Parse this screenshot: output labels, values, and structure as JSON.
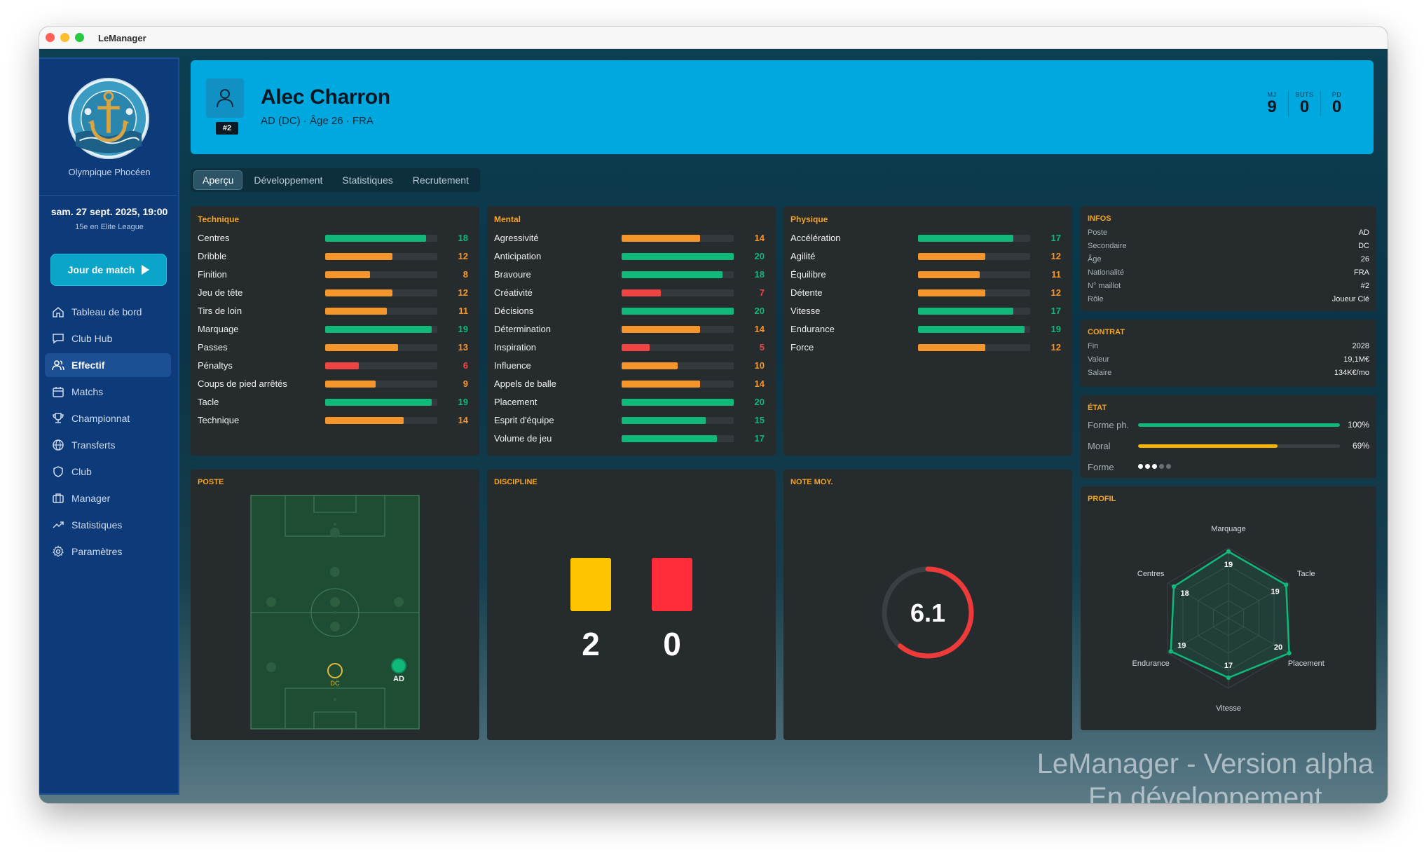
{
  "window": {
    "title": "LeManager"
  },
  "sidebar": {
    "club_name": "Olympique Phocéen",
    "date": "sam. 27 sept. 2025, 19:00",
    "rank": "15e en Elite League",
    "match_button": "Jour de match",
    "nav": [
      {
        "label": "Tableau de bord",
        "icon": "home-icon"
      },
      {
        "label": "Club Hub",
        "icon": "chat-icon"
      },
      {
        "label": "Effectif",
        "icon": "users-icon",
        "active": true
      },
      {
        "label": "Matchs",
        "icon": "calendar-icon"
      },
      {
        "label": "Championnat",
        "icon": "trophy-icon"
      },
      {
        "label": "Transferts",
        "icon": "globe-icon"
      },
      {
        "label": "Club",
        "icon": "shield-icon"
      },
      {
        "label": "Manager",
        "icon": "briefcase-icon"
      },
      {
        "label": "Statistiques",
        "icon": "trend-icon"
      },
      {
        "label": "Paramètres",
        "icon": "gear-icon"
      }
    ]
  },
  "player": {
    "number": "#2",
    "name": "Alec Charron",
    "subtitle": "AD (DC) · Âge 26 · FRA",
    "stats": [
      {
        "label": "MJ",
        "value": "9"
      },
      {
        "label": "BUTS",
        "value": "0"
      },
      {
        "label": "PD",
        "value": "0"
      }
    ]
  },
  "tabs": [
    "Aperçu",
    "Développement",
    "Statistiques",
    "Recrutement"
  ],
  "active_tab": "Aperçu",
  "attribute_max": 20,
  "technique": {
    "title": "Technique",
    "items": [
      {
        "name": "Centres",
        "value": 18
      },
      {
        "name": "Dribble",
        "value": 12
      },
      {
        "name": "Finition",
        "value": 8
      },
      {
        "name": "Jeu de tête",
        "value": 12
      },
      {
        "name": "Tirs de loin",
        "value": 11
      },
      {
        "name": "Marquage",
        "value": 19
      },
      {
        "name": "Passes",
        "value": 13
      },
      {
        "name": "Pénaltys",
        "value": 6
      },
      {
        "name": "Coups de pied arrêtés",
        "value": 9
      },
      {
        "name": "Tacle",
        "value": 19
      },
      {
        "name": "Technique",
        "value": 14
      }
    ]
  },
  "mental": {
    "title": "Mental",
    "items": [
      {
        "name": "Agressivité",
        "value": 14
      },
      {
        "name": "Anticipation",
        "value": 20
      },
      {
        "name": "Bravoure",
        "value": 18
      },
      {
        "name": "Créativité",
        "value": 7
      },
      {
        "name": "Décisions",
        "value": 20
      },
      {
        "name": "Détermination",
        "value": 14
      },
      {
        "name": "Inspiration",
        "value": 5
      },
      {
        "name": "Influence",
        "value": 10
      },
      {
        "name": "Appels de balle",
        "value": 14
      },
      {
        "name": "Placement",
        "value": 20
      },
      {
        "name": "Esprit d'équipe",
        "value": 15
      },
      {
        "name": "Volume de jeu",
        "value": 17
      }
    ]
  },
  "physique": {
    "title": "Physique",
    "items": [
      {
        "name": "Accélération",
        "value": 17
      },
      {
        "name": "Agilité",
        "value": 12
      },
      {
        "name": "Équilibre",
        "value": 11
      },
      {
        "name": "Détente",
        "value": 12
      },
      {
        "name": "Vitesse",
        "value": 17
      },
      {
        "name": "Endurance",
        "value": 19
      },
      {
        "name": "Force",
        "value": 12
      }
    ]
  },
  "infos": {
    "title": "INFOS",
    "rows": [
      {
        "k": "Poste",
        "v": "AD"
      },
      {
        "k": "Secondaire",
        "v": "DC"
      },
      {
        "k": "Âge",
        "v": "26"
      },
      {
        "k": "Nationalité",
        "v": "FRA"
      },
      {
        "k": "N° maillot",
        "v": "#2"
      },
      {
        "k": "Rôle",
        "v": "Joueur Clé"
      }
    ]
  },
  "contrat": {
    "title": "CONTRAT",
    "rows": [
      {
        "k": "Fin",
        "v": "2028"
      },
      {
        "k": "Valeur",
        "v": "19,1M€"
      },
      {
        "k": "Salaire",
        "v": "134K€/mo"
      }
    ]
  },
  "etat": {
    "title": "ÉTAT",
    "forme_ph": {
      "label": "Forme ph.",
      "value": "100%",
      "fraction": 1.0,
      "color": "#10b97a"
    },
    "moral": {
      "label": "Moral",
      "value": "69%",
      "fraction": 0.69,
      "color": "#f5b400"
    },
    "forme": {
      "label": "Forme",
      "filled_dots": 3,
      "total_dots": 5
    }
  },
  "poste": {
    "title": "POSTE",
    "primary": "AD",
    "secondary": "DC"
  },
  "discipline": {
    "title": "DISCIPLINE",
    "yellow": "2",
    "red": "0",
    "yellow_color": "#ffc400",
    "red_color": "#ff2d3a"
  },
  "note": {
    "title": "NOTE MOY.",
    "value": "6.1",
    "fraction": 0.61,
    "color": "#ef3a3a"
  },
  "profil": {
    "title": "PROFIL",
    "max": 20,
    "axes": [
      {
        "label": "Marquage",
        "value": 19
      },
      {
        "label": "Tacle",
        "value": 19
      },
      {
        "label": "Placement",
        "value": 20
      },
      {
        "label": "Vitesse",
        "value": 17
      },
      {
        "label": "Endurance",
        "value": 19
      },
      {
        "label": "Centres",
        "value": 18
      }
    ]
  },
  "watermark": {
    "line1": "LeManager - Version alpha",
    "line2": "En développement"
  }
}
